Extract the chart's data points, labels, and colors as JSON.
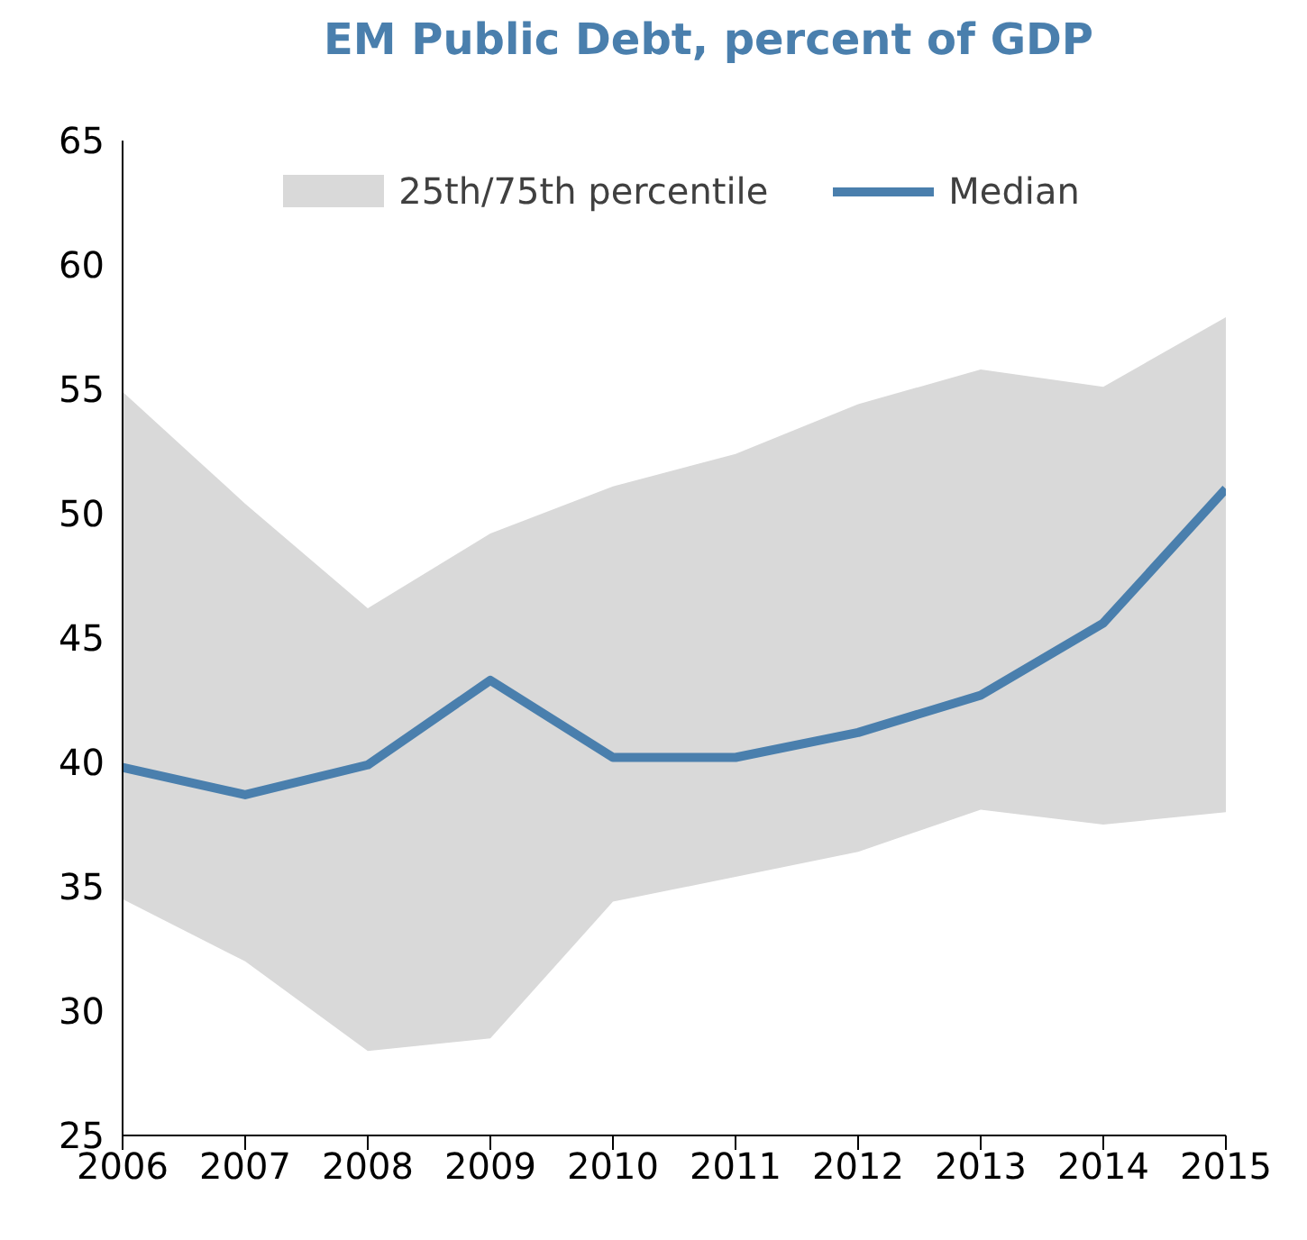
{
  "chart_data": {
    "type": "line",
    "title": "EM Public Debt, percent of GDP",
    "x": [
      2006,
      2007,
      2008,
      2009,
      2010,
      2011,
      2012,
      2013,
      2014,
      2015
    ],
    "series": [
      {
        "name": "Median",
        "type": "line",
        "color": "#4a7fad",
        "values": [
          39.8,
          38.7,
          39.9,
          43.3,
          40.2,
          40.2,
          41.2,
          42.7,
          45.6,
          51.0
        ],
        "lower": [
          34.5,
          32.0,
          28.4,
          28.9,
          34.4,
          35.4,
          36.4,
          38.1,
          37.5,
          38.0
        ],
        "upper": [
          54.9,
          50.4,
          46.2,
          49.2,
          51.1,
          52.4,
          54.4,
          55.8,
          55.1,
          57.9
        ]
      }
    ],
    "annotations": [
      "25th/75th percentile"
    ],
    "xlim": [
      2006,
      2015
    ],
    "xticks": [
      2006,
      2007,
      2008,
      2009,
      2010,
      2011,
      2012,
      2013,
      2014,
      2015
    ],
    "ylim": [
      25,
      65
    ],
    "yticks": [
      25,
      30,
      35,
      40,
      45,
      50,
      55,
      60,
      65
    ],
    "grid": false,
    "legend": "top",
    "marker": "none",
    "line_style": "solid"
  }
}
